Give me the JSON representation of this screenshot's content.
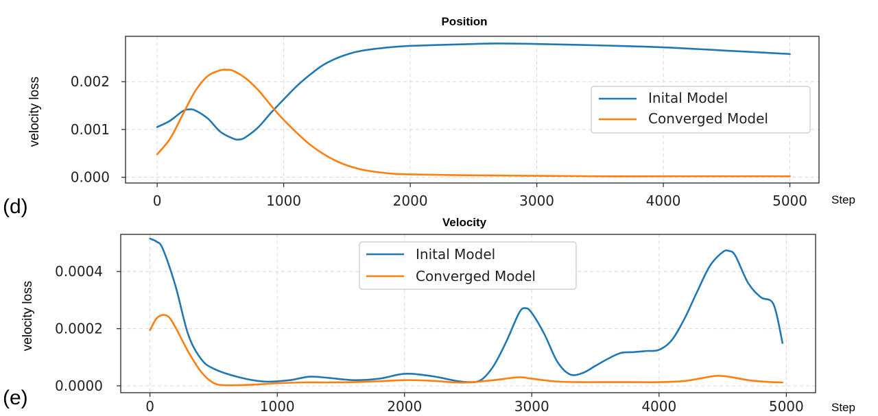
{
  "chart_data": [
    {
      "type": "line",
      "panel_label": "(d)",
      "title": "Position",
      "xlabel": "Step",
      "ylabel": "velocity loss",
      "xlim": [
        -250,
        5230
      ],
      "ylim": [
        -0.00012,
        0.00295
      ],
      "xticks": [
        0,
        1000,
        2000,
        3000,
        4000,
        5000
      ],
      "yticks": [
        0.0,
        0.001,
        0.002
      ],
      "ytick_labels": [
        "0.000",
        "0.001",
        "0.002"
      ],
      "grid": true,
      "legend_position": "center-right",
      "series": [
        {
          "name": "Inital Model",
          "color": "#1f77b4",
          "x": [
            0,
            100,
            200,
            250,
            300,
            400,
            500,
            600,
            650,
            700,
            800,
            900,
            1000,
            1100,
            1200,
            1300,
            1400,
            1500,
            1600,
            1800,
            2000,
            2500,
            2700,
            3000,
            3500,
            4000,
            4500,
            5000
          ],
          "y": [
            0.00105,
            0.00118,
            0.00138,
            0.00142,
            0.0014,
            0.00123,
            0.00095,
            0.00081,
            0.00079,
            0.00084,
            0.00105,
            0.00135,
            0.00163,
            0.0019,
            0.00213,
            0.00233,
            0.00247,
            0.00257,
            0.00264,
            0.00271,
            0.00275,
            0.00279,
            0.0028,
            0.00279,
            0.00276,
            0.00272,
            0.00265,
            0.00258
          ]
        },
        {
          "name": "Converged Model",
          "color": "#ff7f0e",
          "x": [
            0,
            100,
            200,
            300,
            400,
            500,
            550,
            600,
            700,
            800,
            900,
            1000,
            1200,
            1400,
            1600,
            1800,
            2000,
            2500,
            3000,
            3500,
            4000,
            4500,
            5000
          ],
          "y": [
            0.00048,
            0.0008,
            0.0013,
            0.0018,
            0.00212,
            0.00224,
            0.00225,
            0.00223,
            0.00207,
            0.00182,
            0.0015,
            0.0012,
            0.0007,
            0.00036,
            0.00017,
            9e-05,
            6e-05,
            4e-05,
            3e-05,
            2e-05,
            2e-05,
            2e-05,
            2e-05
          ]
        }
      ]
    },
    {
      "type": "line",
      "panel_label": "(e)",
      "title": "Velocity",
      "xlabel": "Step",
      "ylabel": "velocity loss",
      "xlim": [
        -230,
        5230
      ],
      "ylim": [
        -2.4e-05,
        0.00053
      ],
      "xticks": [
        0,
        1000,
        2000,
        3000,
        4000,
        5000
      ],
      "yticks": [
        0.0,
        0.0002,
        0.0004
      ],
      "ytick_labels": [
        "0.0000",
        "0.0002",
        "0.0004"
      ],
      "grid": true,
      "legend_position": "upper-center",
      "series": [
        {
          "name": "Inital Model",
          "color": "#1f77b4",
          "x": [
            0,
            50,
            100,
            200,
            300,
            400,
            500,
            700,
            900,
            1100,
            1250,
            1400,
            1600,
            1800,
            2000,
            2200,
            2400,
            2500,
            2600,
            2700,
            2800,
            2900,
            2950,
            3000,
            3100,
            3200,
            3300,
            3400,
            3500,
            3600,
            3700,
            3800,
            3900,
            4000,
            4100,
            4200,
            4300,
            4400,
            4500,
            4550,
            4600,
            4700,
            4800,
            4900,
            4970
          ],
          "y": [
            0.000515,
            0.000505,
            0.00048,
            0.00035,
            0.00018,
            9.5e-05,
            6e-05,
            3e-05,
            1.5e-05,
            2e-05,
            3.2e-05,
            2.8e-05,
            2e-05,
            2.5e-05,
            4.2e-05,
            3.5e-05,
            1.8e-05,
            1.3e-05,
            2e-05,
            7e-05,
            0.000155,
            0.000255,
            0.000272,
            0.000255,
            0.00018,
            8.5e-05,
            4e-05,
            4.5e-05,
            7e-05,
            9.5e-05,
            0.000115,
            0.000118,
            0.000122,
            0.000126,
            0.00016,
            0.000235,
            0.00033,
            0.00042,
            0.000468,
            0.000472,
            0.000455,
            0.00036,
            0.00031,
            0.000285,
            0.00015
          ]
        },
        {
          "name": "Converged Model",
          "color": "#ff7f0e",
          "x": [
            0,
            50,
            100,
            150,
            200,
            300,
            400,
            500,
            600,
            800,
            1000,
            1200,
            1400,
            1600,
            1800,
            2000,
            2200,
            2400,
            2500,
            2700,
            2900,
            3000,
            3200,
            3400,
            3600,
            3800,
            4000,
            4200,
            4350,
            4450,
            4550,
            4700,
            4850,
            4970
          ],
          "y": [
            0.000195,
            0.000235,
            0.000248,
            0.00024,
            0.000205,
            0.00012,
            5e-05,
            1e-05,
            2e-06,
            4e-06,
            9e-06,
            1.2e-05,
            1.2e-05,
            1.3e-05,
            1.6e-05,
            2e-05,
            1.8e-05,
            1.2e-05,
            1.2e-05,
            2e-05,
            3e-05,
            2.5e-05,
            1.5e-05,
            1.3e-05,
            1.3e-05,
            1.3e-05,
            1.3e-05,
            1.7e-05,
            2.8e-05,
            3.5e-05,
            3.2e-05,
            2e-05,
            1.4e-05,
            1.2e-05
          ]
        }
      ]
    }
  ]
}
